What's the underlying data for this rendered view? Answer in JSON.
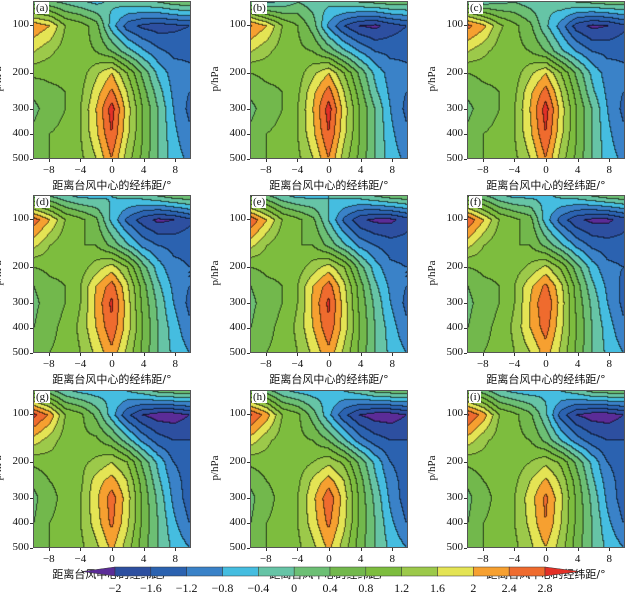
{
  "chart_data": {
    "type": "heatmap",
    "style": "filled-contour",
    "xlabel": "距离台风中心的经纬距/°",
    "ylabel": "p/hPa",
    "x": [
      -10,
      -8,
      -6,
      -4,
      -2,
      0,
      2,
      4,
      6,
      8,
      10
    ],
    "xlim": [
      -10,
      10
    ],
    "xticks": [
      "−8",
      "−4",
      "0",
      "4",
      "8"
    ],
    "p_levels": [
      70,
      100,
      150,
      200,
      250,
      300,
      400,
      500
    ],
    "yticks": [
      "100",
      "200",
      "300",
      "400",
      "500"
    ],
    "contour_levels": [
      -2,
      -1.6,
      -1.2,
      -0.8,
      -0.4,
      0,
      0.4,
      0.8,
      1.2,
      1.6,
      2,
      2.4,
      2.8
    ],
    "colorbar_labels": [
      "−2",
      "−1.6",
      "−1.2",
      "−0.8",
      "−0.4",
      "0",
      "0.4",
      "0.8",
      "1.2",
      "1.6",
      "2",
      "2.4",
      "2.8"
    ],
    "colors": [
      "#5b2c97",
      "#2d4fa0",
      "#2b62b0",
      "#3a82c8",
      "#45bde0",
      "#66c4a6",
      "#6cbf74",
      "#72b84c",
      "#7dbd3e",
      "#9cc94a",
      "#e4e454",
      "#f6a030",
      "#ef6b2e",
      "#e33027"
    ],
    "legend": "bottom",
    "panels": [
      {
        "label": "(a)",
        "values": [
          [
            0.2,
            0.1,
            -0.1,
            -0.3,
            -0.5,
            -0.3,
            -0.2,
            -0.1,
            0,
            0.2,
            0.3
          ],
          [
            2.3,
            2.0,
            1.2,
            1.0,
            0.6,
            -0.6,
            -1.4,
            -1.7,
            -1.8,
            -1.7,
            -1.6
          ],
          [
            1.6,
            1.3,
            1.0,
            0.9,
            0.8,
            0.4,
            -0.2,
            -0.7,
            -1.1,
            -1.3,
            -1.3
          ],
          [
            0.9,
            0.9,
            0.9,
            1.0,
            1.5,
            2.0,
            1.2,
            0.3,
            -0.5,
            -1.0,
            -1.1
          ],
          [
            0.5,
            0.7,
            0.8,
            1.1,
            1.8,
            2.5,
            1.6,
            0.6,
            -0.2,
            -0.9,
            -1.2
          ],
          [
            0.3,
            0.6,
            0.8,
            1.2,
            2.0,
            3.0,
            1.8,
            0.8,
            0.0,
            -0.8,
            -1.3
          ],
          [
            0.5,
            0.8,
            0.9,
            1.2,
            1.9,
            2.8,
            1.7,
            0.8,
            0.0,
            -0.7,
            -1.1
          ],
          [
            0.6,
            0.8,
            0.9,
            1.1,
            1.6,
            2.4,
            1.4,
            0.7,
            0.0,
            -0.6,
            -0.9
          ]
        ]
      },
      {
        "label": "(b)",
        "values": [
          [
            0.1,
            -0.5,
            -0.3,
            0,
            -0.2,
            -0.3,
            -0.1,
            0,
            0.1,
            0.2,
            0.2
          ],
          [
            2.4,
            2.0,
            1.2,
            0.8,
            0.2,
            -0.9,
            -1.6,
            -2.0,
            -2.1,
            -1.8,
            -1.6
          ],
          [
            1.6,
            1.3,
            1.0,
            0.9,
            0.8,
            0.3,
            -0.3,
            -0.8,
            -1.2,
            -1.3,
            -1.3
          ],
          [
            0.8,
            0.9,
            0.9,
            1.0,
            1.5,
            2.0,
            1.2,
            0.3,
            -0.5,
            -1.0,
            -1.1
          ],
          [
            0.5,
            0.7,
            0.8,
            1.1,
            1.9,
            2.6,
            1.6,
            0.6,
            -0.3,
            -0.9,
            -1.2
          ],
          [
            0.3,
            0.6,
            0.8,
            1.2,
            2.0,
            3.0,
            1.8,
            0.8,
            0.0,
            -0.8,
            -1.3
          ],
          [
            0.5,
            0.8,
            0.9,
            1.2,
            1.9,
            2.8,
            1.7,
            0.8,
            0.0,
            -0.7,
            -1.1
          ],
          [
            0.6,
            0.8,
            0.9,
            1.1,
            1.6,
            2.4,
            1.4,
            0.7,
            0.0,
            -0.6,
            -0.9
          ]
        ]
      },
      {
        "label": "(c)",
        "values": [
          [
            0.2,
            -0.2,
            -0.1,
            0,
            -0.2,
            -0.3,
            -0.1,
            0,
            0.1,
            0.2,
            0.2
          ],
          [
            2.5,
            2.1,
            1.3,
            0.9,
            0.5,
            -0.3,
            -1.0,
            -1.8,
            -2.1,
            -2.0,
            -1.7
          ],
          [
            1.6,
            1.3,
            1.0,
            0.9,
            0.8,
            0.4,
            -0.3,
            -0.8,
            -1.2,
            -1.3,
            -1.3
          ],
          [
            0.8,
            0.9,
            0.9,
            1.0,
            1.5,
            2.0,
            1.2,
            0.3,
            -0.5,
            -1.0,
            -1.1
          ],
          [
            0.5,
            0.7,
            0.8,
            1.1,
            1.9,
            2.6,
            1.6,
            0.6,
            -0.3,
            -0.9,
            -1.2
          ],
          [
            0.3,
            0.6,
            0.8,
            1.2,
            2.0,
            3.0,
            1.8,
            0.8,
            0.0,
            -0.8,
            -1.3
          ],
          [
            0.5,
            0.8,
            0.9,
            1.2,
            1.9,
            2.8,
            1.7,
            0.8,
            0.0,
            -0.7,
            -1.1
          ],
          [
            0.6,
            0.8,
            0.9,
            1.1,
            1.6,
            2.4,
            1.4,
            0.7,
            0.0,
            -0.6,
            -0.9
          ]
        ]
      },
      {
        "label": "(d)",
        "values": [
          [
            0.3,
            0,
            -0.3,
            -0.5,
            -0.5,
            -0.4,
            -0.3,
            -0.2,
            0,
            0.2,
            0.3
          ],
          [
            2.6,
            2.0,
            1.2,
            0.9,
            0.5,
            -0.5,
            -1.3,
            -1.8,
            -2.1,
            -2.0,
            -1.7
          ],
          [
            1.7,
            1.2,
            0.9,
            0.8,
            0.8,
            0.3,
            -0.3,
            -0.9,
            -1.2,
            -1.3,
            -1.3
          ],
          [
            0.8,
            0.9,
            0.9,
            1.0,
            1.4,
            1.8,
            1.2,
            0.2,
            -0.6,
            -1.1,
            -1.2
          ],
          [
            0.4,
            0.7,
            0.8,
            1.2,
            2.0,
            2.6,
            1.7,
            0.6,
            -0.3,
            -0.9,
            -1.2
          ],
          [
            0.3,
            0.6,
            0.8,
            1.2,
            2.1,
            2.9,
            1.8,
            0.7,
            -0.1,
            -0.8,
            -1.3
          ],
          [
            0.4,
            0.7,
            0.9,
            1.3,
            2.0,
            2.7,
            1.8,
            0.8,
            0.0,
            -0.6,
            -1.1
          ],
          [
            0.5,
            0.8,
            0.9,
            1.2,
            1.7,
            2.3,
            1.5,
            0.7,
            0.0,
            -0.5,
            -0.8
          ]
        ]
      },
      {
        "label": "(e)",
        "values": [
          [
            0.4,
            0.1,
            -0.3,
            -0.5,
            -0.5,
            -0.4,
            -0.3,
            -0.2,
            0,
            0.2,
            0.3
          ],
          [
            2.7,
            2.0,
            1.2,
            0.9,
            0.5,
            -0.4,
            -1.3,
            -1.9,
            -2.1,
            -2.1,
            -1.8
          ],
          [
            1.7,
            1.2,
            0.9,
            0.8,
            0.8,
            0.3,
            -0.3,
            -0.9,
            -1.2,
            -1.4,
            -1.4
          ],
          [
            0.8,
            0.9,
            0.9,
            1.0,
            1.4,
            1.8,
            1.2,
            0.2,
            -0.6,
            -1.1,
            -1.2
          ],
          [
            0.4,
            0.7,
            0.8,
            1.2,
            2.0,
            2.6,
            1.7,
            0.6,
            -0.3,
            -0.9,
            -1.2
          ],
          [
            0.3,
            0.6,
            0.8,
            1.2,
            2.1,
            2.9,
            1.8,
            0.7,
            -0.1,
            -0.8,
            -1.3
          ],
          [
            0.4,
            0.7,
            0.9,
            1.3,
            2.0,
            2.7,
            1.8,
            0.8,
            0.0,
            -0.6,
            -1.1
          ],
          [
            0.5,
            0.8,
            0.9,
            1.2,
            1.7,
            2.3,
            1.5,
            0.7,
            0.0,
            -0.5,
            -0.8
          ]
        ]
      },
      {
        "label": "(f)",
        "values": [
          [
            0.4,
            0.1,
            -0.3,
            -0.5,
            -0.5,
            -0.5,
            -0.3,
            -0.2,
            0,
            0.2,
            0.3
          ],
          [
            2.7,
            2.0,
            1.2,
            0.9,
            0.6,
            -0.6,
            -1.4,
            -1.9,
            -2.1,
            -2.1,
            -1.8
          ],
          [
            1.7,
            1.2,
            0.9,
            0.8,
            0.8,
            0.3,
            -0.3,
            -0.9,
            -1.3,
            -1.4,
            -1.4
          ],
          [
            0.8,
            0.9,
            0.9,
            1.0,
            1.3,
            1.7,
            1.1,
            0.2,
            -0.6,
            -1.1,
            -1.2
          ],
          [
            0.4,
            0.7,
            0.8,
            1.2,
            1.9,
            2.5,
            1.7,
            0.6,
            -0.3,
            -0.9,
            -1.3
          ],
          [
            0.3,
            0.6,
            0.8,
            1.2,
            2.0,
            2.8,
            1.8,
            0.7,
            -0.1,
            -0.8,
            -1.3
          ],
          [
            0.4,
            0.7,
            0.9,
            1.3,
            2.0,
            2.6,
            1.7,
            0.8,
            0.0,
            -0.6,
            -1.1
          ],
          [
            0.5,
            0.8,
            0.9,
            1.2,
            1.6,
            2.2,
            1.5,
            0.7,
            0.0,
            -0.5,
            -0.8
          ]
        ]
      },
      {
        "label": "(g)",
        "values": [
          [
            0.6,
            0.2,
            -0.3,
            -0.5,
            -0.6,
            -0.5,
            -0.4,
            -0.2,
            0.1,
            0.2,
            0.2
          ],
          [
            2.9,
            2.3,
            1.2,
            0.9,
            0.3,
            -0.6,
            -1.5,
            -2.0,
            -2.2,
            -2.2,
            -2.0
          ],
          [
            1.8,
            1.4,
            1.0,
            0.9,
            0.9,
            0.5,
            -0.2,
            -0.9,
            -1.4,
            -1.6,
            -1.6
          ],
          [
            0.9,
            1.0,
            1.0,
            1.1,
            1.3,
            1.6,
            1.2,
            0.3,
            -0.5,
            -1.2,
            -1.4
          ],
          [
            0.5,
            0.8,
            0.9,
            1.1,
            1.8,
            2.2,
            1.6,
            0.6,
            -0.3,
            -1.0,
            -1.4
          ],
          [
            0.3,
            0.7,
            0.9,
            1.2,
            1.9,
            2.6,
            1.8,
            0.7,
            -0.1,
            -0.9,
            -1.4
          ],
          [
            0.4,
            0.8,
            0.9,
            1.2,
            1.8,
            2.5,
            1.7,
            0.7,
            0.0,
            -0.7,
            -1.2
          ],
          [
            0.5,
            0.8,
            0.9,
            1.1,
            1.5,
            2.1,
            1.4,
            0.6,
            0.0,
            -0.5,
            -0.8
          ]
        ]
      },
      {
        "label": "(h)",
        "values": [
          [
            0.6,
            0.2,
            -0.3,
            -0.5,
            -0.6,
            -0.5,
            -0.4,
            -0.2,
            0.1,
            0.2,
            0.2
          ],
          [
            2.8,
            2.2,
            1.2,
            0.9,
            0.2,
            -0.7,
            -1.5,
            -2.0,
            -2.2,
            -2.2,
            -2.0
          ],
          [
            1.8,
            1.3,
            1.0,
            0.9,
            0.8,
            0.4,
            -0.3,
            -1.0,
            -1.4,
            -1.6,
            -1.6
          ],
          [
            0.9,
            1.0,
            1.0,
            1.0,
            1.2,
            1.5,
            1.1,
            0.3,
            -0.5,
            -1.2,
            -1.4
          ],
          [
            0.5,
            0.8,
            0.9,
            1.1,
            1.7,
            2.2,
            1.6,
            0.6,
            -0.3,
            -1.0,
            -1.4
          ],
          [
            0.3,
            0.7,
            0.9,
            1.2,
            1.9,
            2.7,
            1.8,
            0.7,
            -0.1,
            -0.9,
            -1.4
          ],
          [
            0.4,
            0.8,
            0.9,
            1.2,
            1.8,
            2.5,
            1.7,
            0.7,
            0.0,
            -0.7,
            -1.2
          ],
          [
            0.5,
            0.8,
            0.9,
            1.1,
            1.5,
            2.1,
            1.4,
            0.6,
            0.0,
            -0.5,
            -0.8
          ]
        ]
      },
      {
        "label": "(i)",
        "values": [
          [
            0.6,
            0.2,
            -0.3,
            -0.5,
            -0.6,
            -0.5,
            -0.4,
            -0.2,
            0.1,
            0.2,
            0.2
          ],
          [
            2.8,
            2.2,
            1.2,
            0.9,
            0.5,
            -0.3,
            -1.4,
            -2.0,
            -2.2,
            -2.2,
            -2.0
          ],
          [
            1.8,
            1.3,
            1.0,
            0.9,
            0.8,
            0.3,
            -0.4,
            -1.0,
            -1.4,
            -1.6,
            -1.6
          ],
          [
            0.9,
            1.0,
            1.0,
            1.0,
            1.2,
            1.5,
            1.1,
            0.3,
            -0.5,
            -1.2,
            -1.4
          ],
          [
            0.5,
            0.8,
            0.9,
            1.1,
            1.6,
            2.1,
            1.5,
            0.6,
            -0.3,
            -1.0,
            -1.4
          ],
          [
            0.3,
            0.7,
            0.9,
            1.2,
            1.8,
            2.5,
            1.7,
            0.7,
            -0.1,
            -0.9,
            -1.4
          ],
          [
            0.4,
            0.8,
            0.9,
            1.2,
            1.7,
            2.4,
            1.6,
            0.7,
            0.0,
            -0.7,
            -1.2
          ],
          [
            0.5,
            0.8,
            0.9,
            1.1,
            1.5,
            2.0,
            1.4,
            0.6,
            0.0,
            -0.5,
            -0.8
          ]
        ]
      }
    ]
  }
}
